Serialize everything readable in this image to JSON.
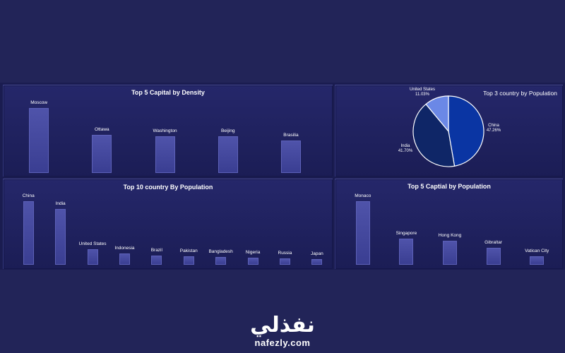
{
  "brand": {
    "arabic": "نفذلي",
    "url": "nafezly.com"
  },
  "chart_data": [
    {
      "type": "bar",
      "title": "Top 5 Capital by Density",
      "categories": [
        "Moscow",
        "Ottawa",
        "Washington",
        "Beijing",
        "Brasilia"
      ],
      "values": [
        97,
        57,
        55,
        55,
        48
      ],
      "ylim": [
        0,
        100
      ]
    },
    {
      "type": "pie",
      "title": "Top 3 country by Population",
      "slices": [
        {
          "label": "China",
          "value": 47.26,
          "display": "47.26%",
          "color": "#0a35a3"
        },
        {
          "label": "India",
          "value": 41.7,
          "display": "41.70%",
          "color": "#0f2667"
        },
        {
          "label": "United States",
          "value": 11.03,
          "display": "11.03%",
          "color": "#6b88e6"
        }
      ]
    },
    {
      "type": "bar",
      "title": "Top 10 country By Population",
      "categories": [
        "China",
        "India",
        "United States",
        "Indonesia",
        "Brazil",
        "Pakistan",
        "Bangladesh",
        "Nigeria",
        "Russia",
        "Japan"
      ],
      "values": [
        100,
        88,
        24,
        18,
        15,
        13,
        12,
        11,
        10,
        9
      ],
      "ylim": [
        0,
        100
      ]
    },
    {
      "type": "bar",
      "title": "Top 5 Captial by Population",
      "categories": [
        "Monaco",
        "Singapore",
        "Hong Kong",
        "Gibraltar",
        "Vatican City"
      ],
      "values": [
        100,
        41,
        38,
        27,
        13
      ],
      "ylim": [
        0,
        100
      ]
    }
  ]
}
